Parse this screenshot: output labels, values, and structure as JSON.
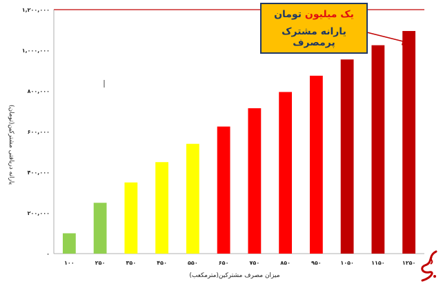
{
  "chart_data": {
    "type": "bar",
    "categories": [
      "۱۰۰",
      "۲۵۰",
      "۳۵۰",
      "۴۵۰",
      "۵۵۰",
      "۶۵۰",
      "۷۵۰",
      "۸۵۰",
      "۹۵۰",
      "۱۰۵۰",
      "۱۱۵۰",
      "۱۲۵۰"
    ],
    "values": [
      100000,
      250000,
      350000,
      450000,
      540000,
      625000,
      715000,
      795000,
      875000,
      955000,
      1025000,
      1095000
    ],
    "bar_colors": [
      "#92d050",
      "#92d050",
      "#ffff00",
      "#ffff00",
      "#ffff00",
      "#ff0000",
      "#ff0000",
      "#ff0000",
      "#ff0000",
      "#c00000",
      "#c00000",
      "#c00000"
    ],
    "ylim": [
      0,
      1200000
    ],
    "yticks": [
      0,
      200000,
      400000,
      600000,
      800000,
      1000000,
      1200000
    ],
    "ytick_labels": [
      "۰",
      "۲۰۰,۰۰۰",
      "۴۰۰,۰۰۰",
      "۶۰۰,۰۰۰",
      "۸۰۰,۰۰۰",
      "۱,۰۰۰,۰۰۰",
      "۱,۲۰۰,۰۰۰"
    ],
    "xlabel": "میزان مصرف مشترکین(مترمکعب)",
    "ylabel": "یارانه دریافتی مشترکین(تومان)",
    "grid": false,
    "top_reference_line_color": "#c00000"
  },
  "callout": {
    "line1_red": "یک میلیون",
    "line1_blue": "تومان",
    "line2": "یارانه مشترک پرمصرف",
    "fill_color": "#ffc000",
    "text_color": "#1f3864",
    "highlight_color": "#e01010"
  },
  "watermark": {
    "icon": "site-logo-watermark"
  }
}
